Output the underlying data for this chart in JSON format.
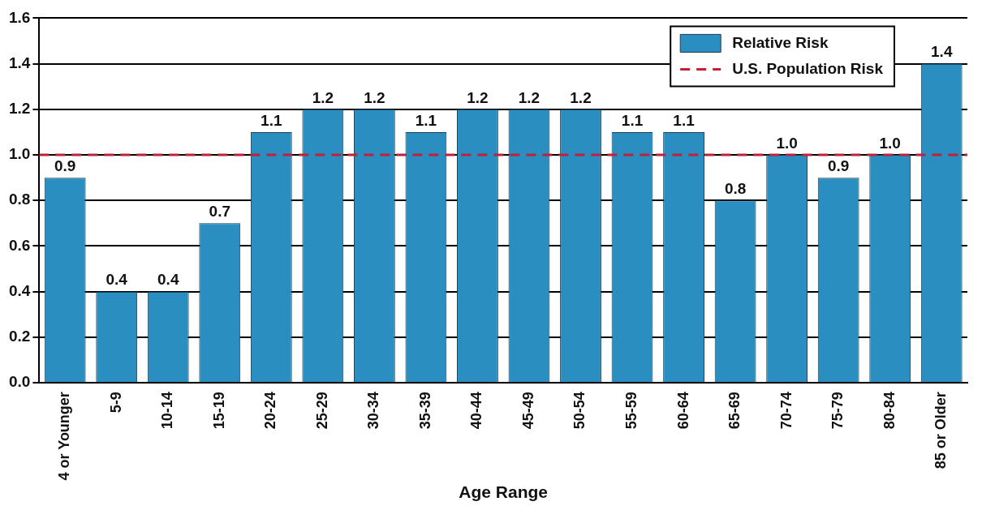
{
  "chart_data": {
    "type": "bar",
    "xlabel": "Age Range",
    "categories": [
      "4 or Younger",
      "5-9",
      "10-14",
      "15-19",
      "20-24",
      "25-29",
      "30-34",
      "35-39",
      "40-44",
      "45-49",
      "50-54",
      "55-59",
      "60-64",
      "65-69",
      "70-74",
      "75-79",
      "80-84",
      "85 or Older"
    ],
    "series": [
      {
        "name": "Relative Risk",
        "color": "#2a8fc0",
        "values": [
          0.9,
          0.4,
          0.4,
          0.7,
          1.1,
          1.2,
          1.2,
          1.1,
          1.2,
          1.2,
          1.2,
          1.1,
          1.1,
          0.8,
          1.0,
          0.9,
          1.0,
          1.4
        ],
        "value_labels": [
          "0.9",
          "0.4",
          "0.4",
          "0.7",
          "1.1",
          "1.2",
          "1.2",
          "1.1",
          "1.2",
          "1.2",
          "1.2",
          "1.1",
          "1.1",
          "0.8",
          "1.0",
          "0.9",
          "1.0",
          "1.4"
        ]
      }
    ],
    "ylim": [
      0,
      1.6
    ],
    "yticks": [
      {
        "value": 0,
        "label": "0.0"
      },
      {
        "value": 0.2,
        "label": "0.2"
      },
      {
        "value": 0.4,
        "label": "0.4"
      },
      {
        "value": 0.6,
        "label": "0.6"
      },
      {
        "value": 0.8,
        "label": "0.8"
      },
      {
        "value": 1,
        "label": "1.0"
      },
      {
        "value": 1.2,
        "label": "1.2"
      },
      {
        "value": 1.4,
        "label": "1.4"
      },
      {
        "value": 1.6,
        "label": "1.6"
      }
    ],
    "ref_lines": [
      {
        "axis": "y",
        "value": 1,
        "label": "U.S. Population Risk",
        "color": "#c0203a",
        "line_style": "dashed"
      }
    ],
    "grid": "y",
    "legend": "top right"
  }
}
